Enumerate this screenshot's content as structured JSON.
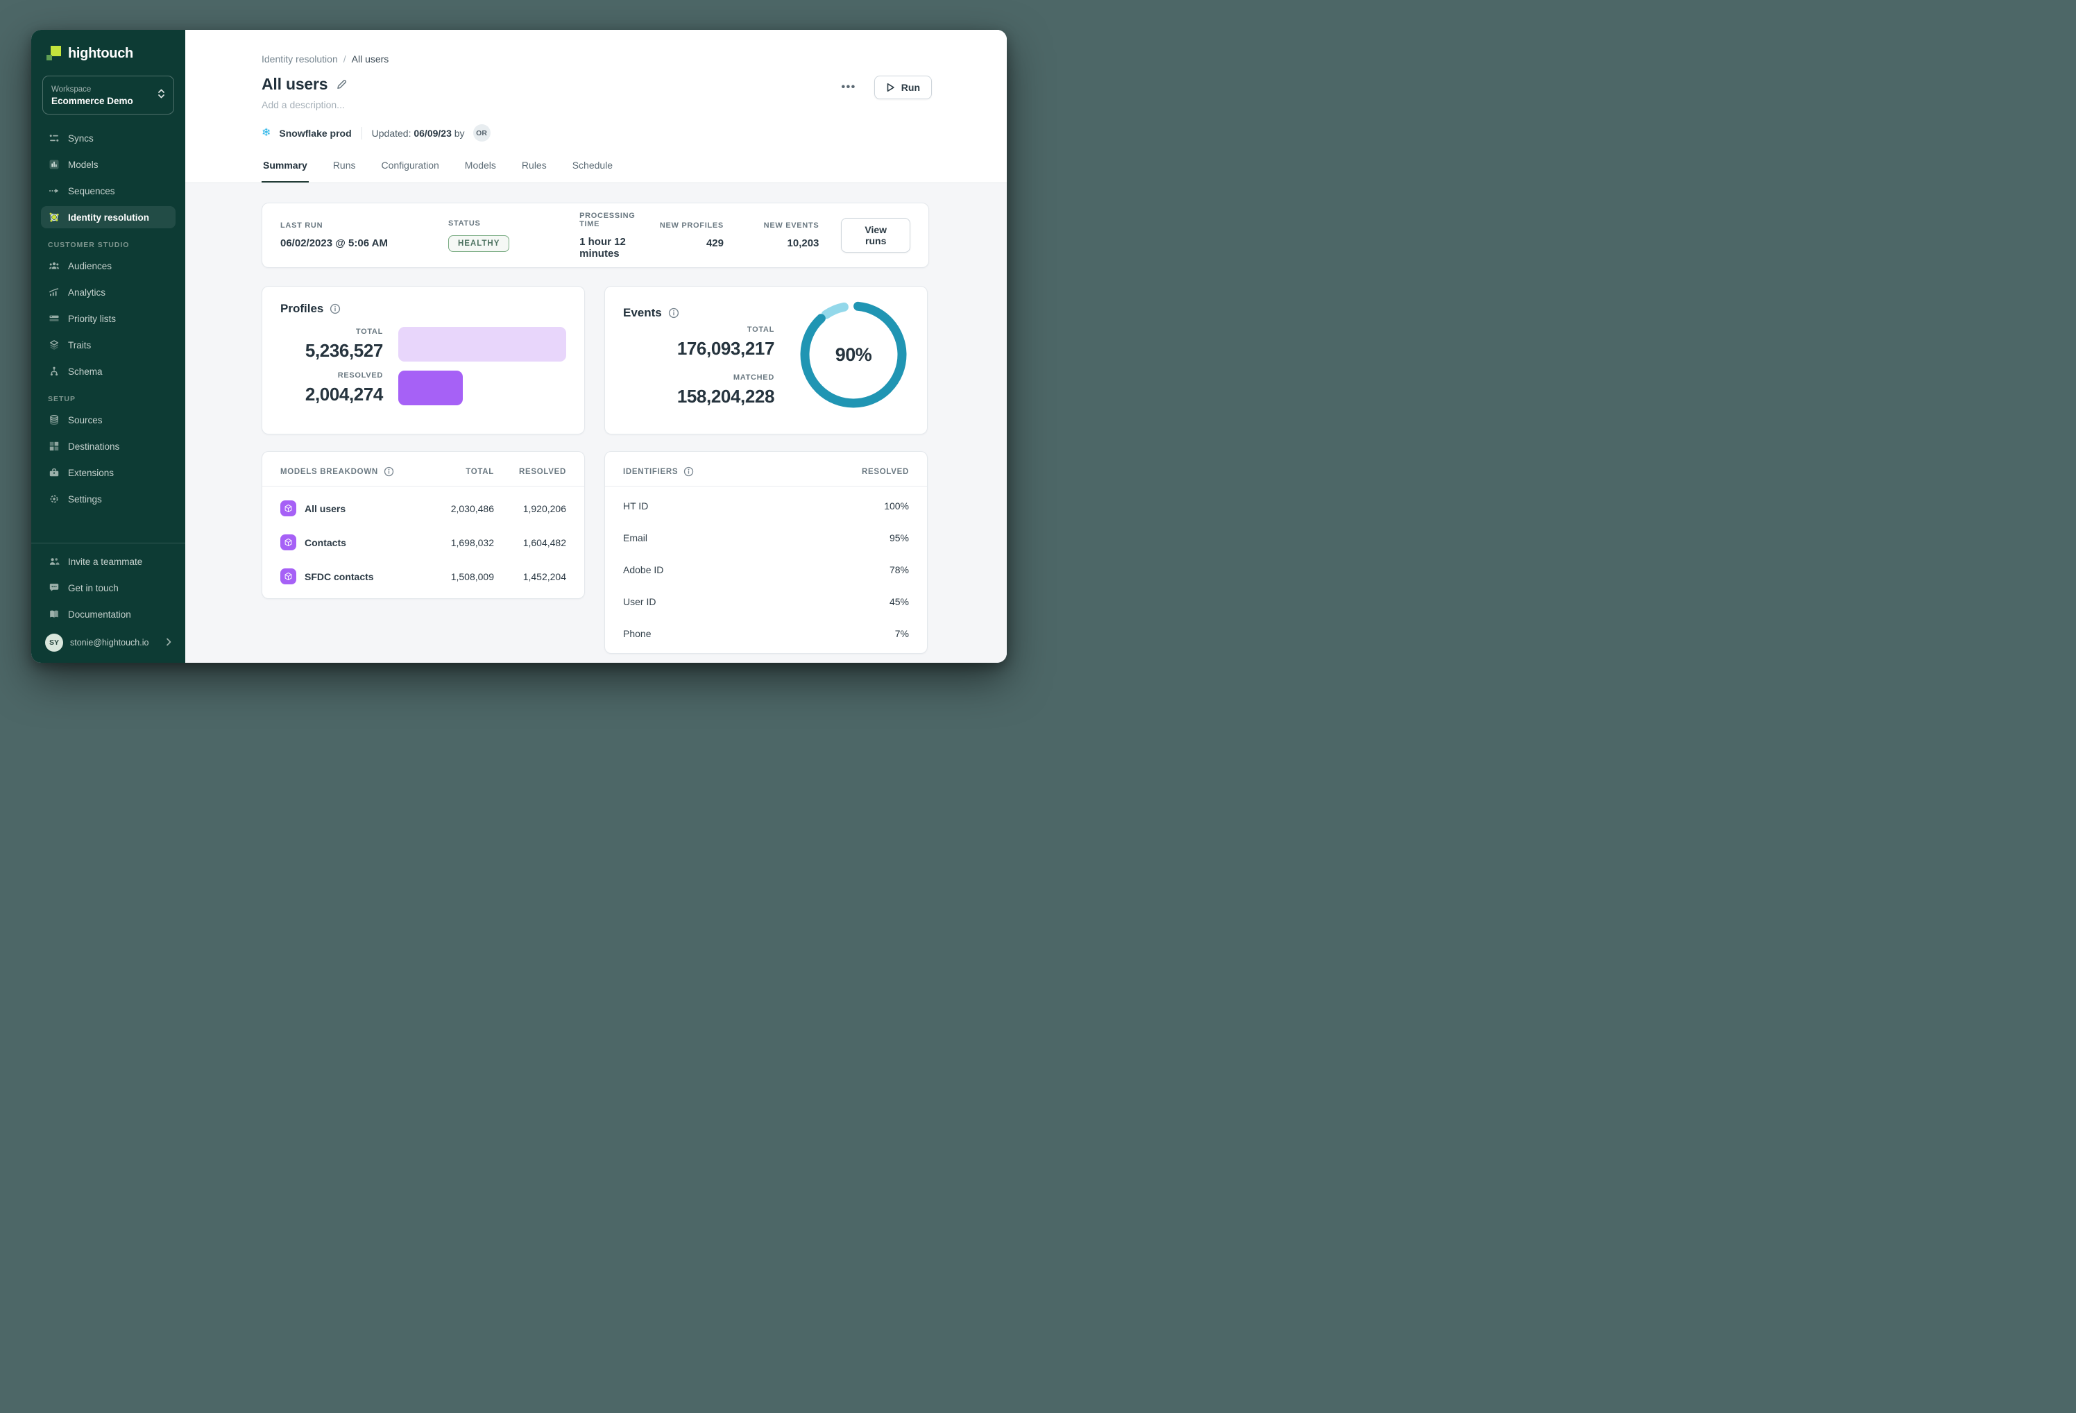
{
  "sidebar": {
    "logo_text": "hightouch",
    "workspace_label": "Workspace",
    "workspace_value": "Ecommerce Demo",
    "items": [
      {
        "label": "Syncs"
      },
      {
        "label": "Models"
      },
      {
        "label": "Sequences"
      },
      {
        "label": "Identity resolution",
        "active": true
      },
      {
        "label": "Audiences"
      },
      {
        "label": "Analytics"
      },
      {
        "label": "Priority lists"
      },
      {
        "label": "Traits"
      },
      {
        "label": "Schema"
      },
      {
        "label": "Sources"
      },
      {
        "label": "Destinations"
      },
      {
        "label": "Extensions"
      },
      {
        "label": "Settings"
      }
    ],
    "sections": {
      "customer_studio": "CUSTOMER STUDIO",
      "setup": "SETUP"
    },
    "footer_items": [
      {
        "label": "Invite a teammate"
      },
      {
        "label": "Get in touch"
      },
      {
        "label": "Documentation"
      }
    ],
    "user": {
      "initials": "SY",
      "email": "stonie@hightouch.io"
    }
  },
  "header": {
    "breadcrumb": {
      "parent": "Identity resolution",
      "separator": "/",
      "current": "All users"
    },
    "title": "All users",
    "description_placeholder": "Add a description...",
    "source_name": "Snowflake prod",
    "updated_label": "Updated:",
    "updated_date": "06/09/23",
    "updated_by_word": "by",
    "updated_by_initials": "OR",
    "menu_dots": "•••",
    "run_label": "Run"
  },
  "tabs": [
    {
      "label": "Summary",
      "active": true
    },
    {
      "label": "Runs"
    },
    {
      "label": "Configuration"
    },
    {
      "label": "Models"
    },
    {
      "label": "Rules"
    },
    {
      "label": "Schedule"
    }
  ],
  "stats": {
    "last_run_label": "LAST RUN",
    "last_run_value": "06/02/2023 @ 5:06 AM",
    "status_label": "STATUS",
    "status_value": "HEALTHY",
    "processing_label": "PROCESSING TIME",
    "processing_value": "1 hour 12 minutes",
    "new_profiles_label": "NEW PROFILES",
    "new_profiles_value": "429",
    "new_events_label": "NEW EVENTS",
    "new_events_value": "10,203",
    "view_runs_label": "View runs"
  },
  "profiles": {
    "title": "Profiles",
    "total_label": "TOTAL",
    "total_value": "5,236,527",
    "resolved_label": "RESOLVED",
    "resolved_value": "2,004,274"
  },
  "events": {
    "title": "Events",
    "total_label": "TOTAL",
    "total_value": "176,093,217",
    "matched_label": "MATCHED",
    "matched_value": "158,204,228",
    "percent": "90%"
  },
  "models_breakdown": {
    "title": "MODELS BREAKDOWN",
    "col_total": "TOTAL",
    "col_resolved": "RESOLVED",
    "rows": [
      {
        "name": "All users",
        "total": "2,030,486",
        "resolved": "1,920,206"
      },
      {
        "name": "Contacts",
        "total": "1,698,032",
        "resolved": "1,604,482"
      },
      {
        "name": "SFDC contacts",
        "total": "1,508,009",
        "resolved": "1,452,204"
      }
    ]
  },
  "identifiers": {
    "title": "IDENTIFIERS",
    "col_resolved": "RESOLVED",
    "rows": [
      {
        "name": "HT ID",
        "resolved": "100%"
      },
      {
        "name": "Email",
        "resolved": "95%"
      },
      {
        "name": "Adobe ID",
        "resolved": "78%"
      },
      {
        "name": "User ID",
        "resolved": "45%"
      },
      {
        "name": "Phone",
        "resolved": "7%"
      }
    ]
  },
  "chart_data": [
    {
      "type": "bar",
      "title": "Profiles",
      "orientation": "horizontal",
      "categories": [
        "Total",
        "Resolved"
      ],
      "values": [
        5236527,
        2004274
      ],
      "total": 5236527,
      "resolved": 2004274,
      "colors": [
        "#e8d6fb",
        "#a661f6"
      ]
    },
    {
      "type": "pie",
      "title": "Events matched",
      "matched_pct": 90,
      "center_label": "90%",
      "slices": [
        {
          "label": "Matched",
          "value": 158204228,
          "color": "#2095b3"
        },
        {
          "label": "Unmatched",
          "value": 17888989,
          "color": "#93d8ea"
        }
      ]
    }
  ],
  "colors": {
    "sidebar_bg": "#0d3b34",
    "accent_lime": "#c4e43c",
    "donut_teal": "#2095b3",
    "donut_light": "#93d8ea",
    "purple": "#a661f6",
    "purple_light": "#e8d6fb",
    "healthy_green": "#4e7361",
    "snowflake_blue": "#2ab5e8"
  }
}
